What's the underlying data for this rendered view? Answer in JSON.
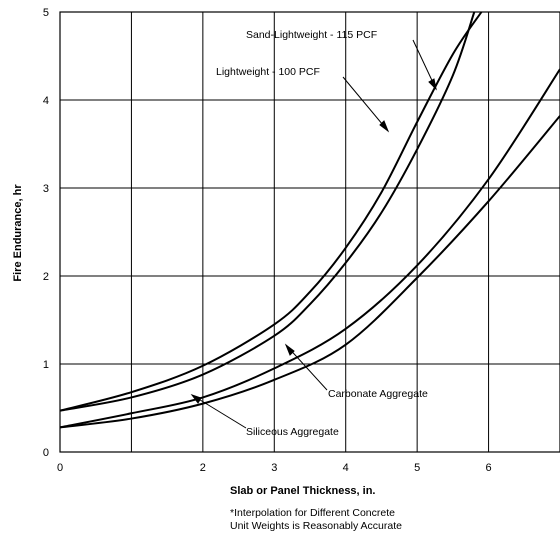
{
  "chart_data": {
    "type": "line",
    "xlabel": "Slab or Panel Thickness, in.",
    "ylabel": "Fire Endurance, hr",
    "xlim": [
      0,
      7
    ],
    "ylim": [
      0,
      5
    ],
    "x_ticks": [
      "0",
      "2",
      "3",
      "4",
      "5",
      "6"
    ],
    "x_tick_values": [
      0,
      2,
      3,
      4,
      5,
      6
    ],
    "y_ticks": [
      "0",
      "1",
      "2",
      "3",
      "4",
      "5"
    ],
    "y_tick_values": [
      0,
      1,
      2,
      3,
      4,
      5
    ],
    "grid": true,
    "series": [
      {
        "name": "Sand-Lightweight - 115 PCF",
        "x": [
          0,
          1,
          2,
          3,
          3.5,
          4,
          4.5,
          5,
          5.5,
          5.9
        ],
        "y": [
          0.47,
          0.68,
          0.98,
          1.45,
          1.82,
          2.32,
          2.95,
          3.75,
          4.52,
          5.0
        ]
      },
      {
        "name": "Lightweight - 100 PCF",
        "x": [
          0,
          1,
          2,
          3,
          3.5,
          4,
          4.5,
          5,
          5.5,
          5.8
        ],
        "y": [
          0.47,
          0.62,
          0.88,
          1.32,
          1.68,
          2.15,
          2.72,
          3.44,
          4.28,
          5.0
        ]
      },
      {
        "name": "Carbonate Aggregate",
        "x": [
          0,
          1,
          2,
          3,
          4,
          5,
          6,
          7
        ],
        "y": [
          0.28,
          0.44,
          0.62,
          0.95,
          1.4,
          2.12,
          3.1,
          4.35
        ]
      },
      {
        "name": "Siliceous Aggregate",
        "x": [
          0,
          1,
          2,
          3,
          4,
          5,
          6,
          7
        ],
        "y": [
          0.28,
          0.38,
          0.55,
          0.82,
          1.22,
          1.98,
          2.85,
          3.82
        ]
      }
    ],
    "annotations": [
      {
        "text": "Sand-Lightweight - 115 PCF",
        "series": 0
      },
      {
        "text": "Lightweight - 100 PCF",
        "series": 1
      },
      {
        "text": "Carbonate Aggregate",
        "series": 2
      },
      {
        "text": "Siliceous Aggregate",
        "series": 3
      }
    ],
    "note": [
      "*Interpolation for Different Concrete",
      "Unit Weights is Reasonably Accurate"
    ]
  }
}
